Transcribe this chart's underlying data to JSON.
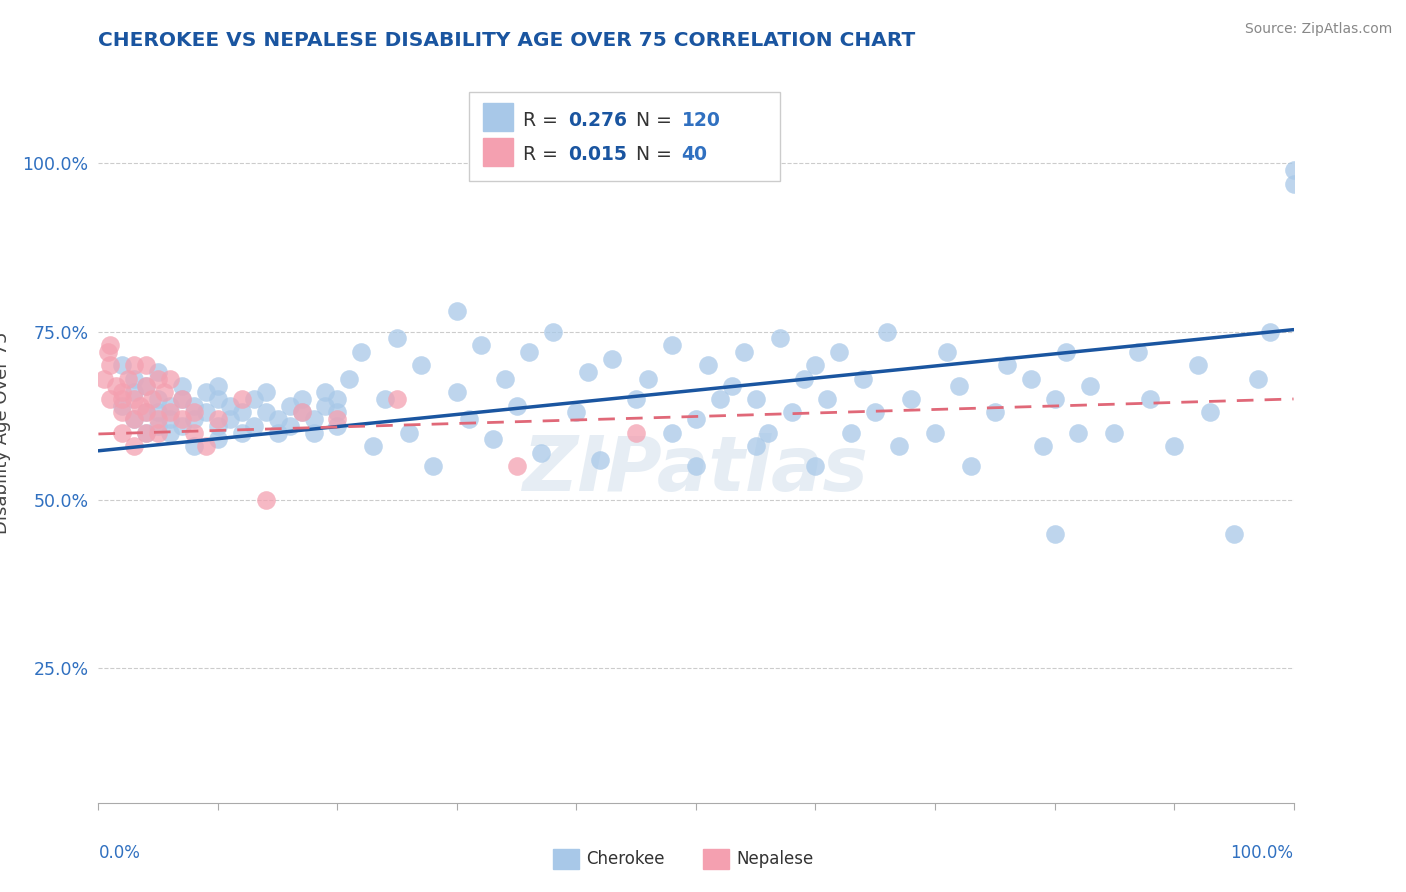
{
  "title": "CHEROKEE VS NEPALESE DISABILITY AGE OVER 75 CORRELATION CHART",
  "source_text": "Source: ZipAtlas.com",
  "ylabel": "Disability Age Over 75",
  "cherokee_R": 0.276,
  "cherokee_N": 120,
  "nepalese_R": 0.015,
  "nepalese_N": 40,
  "cherokee_color": "#a8c8e8",
  "nepalese_color": "#f4a0b0",
  "cherokee_line_color": "#1a55a0",
  "nepalese_line_color": "#e06878",
  "title_color": "#1a55a0",
  "tick_color": "#3070c0",
  "watermark": "ZIPatlas",
  "ytick_labels": [
    "25.0%",
    "50.0%",
    "75.0%",
    "100.0%"
  ],
  "ytick_values": [
    0.25,
    0.5,
    0.75,
    1.0
  ],
  "xlim": [
    0.0,
    1.0
  ],
  "ylim": [
    0.05,
    1.15
  ],
  "cherokee_line_x0": 0.0,
  "cherokee_line_y0": 0.573,
  "cherokee_line_x1": 1.0,
  "cherokee_line_y1": 0.753,
  "nepalese_line_x0": 0.0,
  "nepalese_line_y0": 0.598,
  "nepalese_line_x1": 1.0,
  "nepalese_line_y1": 0.65
}
